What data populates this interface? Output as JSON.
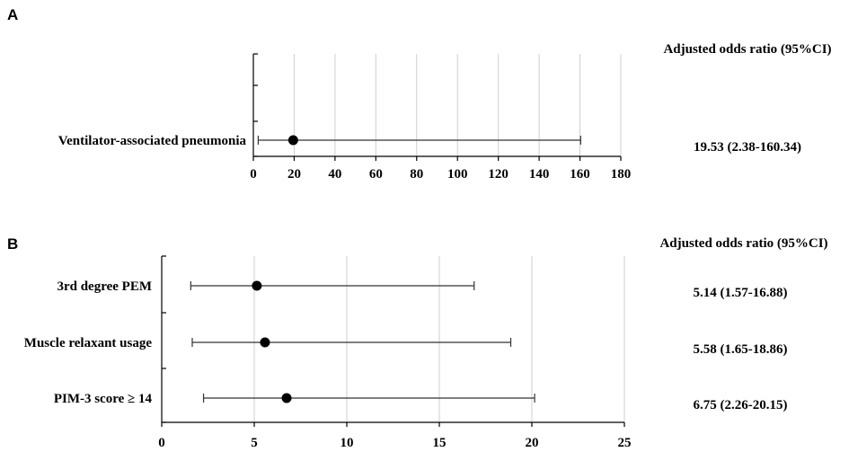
{
  "chart_data": [
    {
      "type": "forest",
      "panel_label": "A",
      "column_header": "Adjusted odds ratio (95%CI)",
      "xlim": [
        0,
        180
      ],
      "xticks": [
        0,
        20,
        40,
        60,
        80,
        100,
        120,
        140,
        160,
        180
      ],
      "xtick_labels": [
        "0",
        "20",
        "40",
        "60",
        "80",
        "100",
        "120",
        "140",
        "160",
        "180"
      ],
      "grid": true,
      "rows": [
        {
          "label": "",
          "estimate": null,
          "lower": null,
          "upper": null,
          "or_text": ""
        },
        {
          "label": "",
          "estimate": null,
          "lower": null,
          "upper": null,
          "or_text": ""
        },
        {
          "label": "Ventilator-associated pneumonia",
          "estimate": 19.53,
          "lower": 2.38,
          "upper": 160.34,
          "or_text": "19.53 (2.38-160.34)"
        }
      ]
    },
    {
      "type": "forest",
      "panel_label": "B",
      "column_header": "Adjusted odds ratio (95%CI)",
      "xlim": [
        0,
        25
      ],
      "xticks": [
        0,
        5,
        10,
        15,
        20,
        25
      ],
      "xtick_labels": [
        "0",
        "5",
        "10",
        "15",
        "20",
        "25"
      ],
      "grid": true,
      "rows": [
        {
          "label": "3rd degree PEM",
          "estimate": 5.14,
          "lower": 1.57,
          "upper": 16.88,
          "or_text": "5.14 (1.57-16.88)"
        },
        {
          "label": "Muscle relaxant usage",
          "estimate": 5.58,
          "lower": 1.65,
          "upper": 18.86,
          "or_text": "5.58 (1.65-18.86)"
        },
        {
          "label": "PIM-3 score ≥ 14",
          "estimate": 6.75,
          "lower": 2.26,
          "upper": 20.15,
          "or_text": "6.75 (2.26-20.15)"
        }
      ]
    }
  ]
}
